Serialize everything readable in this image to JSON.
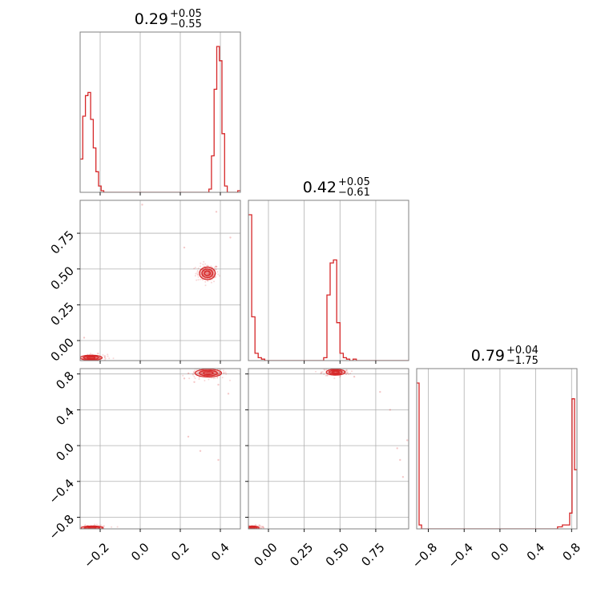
{
  "chart_data": {
    "type": "corner",
    "color": "#d62728",
    "grid": true,
    "parameters": [
      "p0",
      "p1",
      "p2"
    ],
    "titles": [
      {
        "median": "0.29",
        "plus": "+0.05",
        "minus": "−0.55"
      },
      {
        "median": "0.42",
        "plus": "+0.05",
        "minus": "−0.61"
      },
      {
        "median": "0.79",
        "plus": "+0.04",
        "minus": "−1.75"
      }
    ],
    "ranges": [
      [
        -0.3,
        0.5
      ],
      [
        -0.14,
        0.98
      ],
      [
        -0.93,
        0.86
      ]
    ],
    "ticks": [
      {
        "values": [
          -0.2,
          0.0,
          0.2,
          0.4
        ],
        "labels": [
          "−0.2",
          "0.0",
          "0.2",
          "0.4"
        ]
      },
      {
        "values": [
          0.0,
          0.25,
          0.5,
          0.75
        ],
        "labels": [
          "0.00",
          "0.25",
          "0.50",
          "0.75"
        ]
      },
      {
        "values": [
          -0.8,
          -0.4,
          0.0,
          0.4,
          0.8
        ],
        "labels": [
          "−0.8",
          "−0.4",
          "0.0",
          "0.4",
          "0.8"
        ]
      }
    ],
    "histograms": [
      {
        "param": 0,
        "bins": [
          -0.3,
          0.5
        ],
        "counts": [
          0.21,
          0.48,
          0.61,
          0.63,
          0.46,
          0.28,
          0.13,
          0.04,
          0.01,
          0,
          0,
          0,
          0,
          0,
          0,
          0,
          0,
          0,
          0,
          0,
          0,
          0,
          0,
          0,
          0,
          0,
          0,
          0,
          0,
          0,
          0,
          0,
          0,
          0,
          0,
          0,
          0,
          0,
          0,
          0,
          0,
          0,
          0,
          0,
          0,
          0,
          0,
          0,
          0,
          0.02,
          0.23,
          0.65,
          0.92,
          0.83,
          0.37,
          0.04,
          0,
          0,
          0,
          0,
          0.01
        ]
      },
      {
        "param": 1,
        "bins": [
          -0.14,
          0.98
        ],
        "counts": [
          1.0,
          0.3,
          0.05,
          0.02,
          0.01,
          0,
          0,
          0,
          0,
          0,
          0,
          0,
          0,
          0,
          0,
          0,
          0,
          0,
          0,
          0,
          0,
          0,
          0,
          0.02,
          0.45,
          0.67,
          0.69,
          0.26,
          0.05,
          0.02,
          0.01,
          0,
          0.01,
          0,
          0,
          0,
          0,
          0,
          0,
          0,
          0,
          0,
          0,
          0,
          0,
          0,
          0,
          0,
          0
        ]
      },
      {
        "param": 2,
        "bins": [
          -0.93,
          0.86
        ],
        "counts": [
          0.74,
          0.02,
          0,
          0,
          0,
          0,
          0,
          0,
          0,
          0,
          0,
          0,
          0,
          0,
          0,
          0,
          0,
          0,
          0,
          0,
          0,
          0,
          0,
          0,
          0,
          0,
          0,
          0,
          0,
          0,
          0,
          0,
          0,
          0,
          0,
          0,
          0,
          0,
          0,
          0,
          0,
          0,
          0,
          0,
          0,
          0,
          0,
          0,
          0,
          0,
          0,
          0,
          0,
          0,
          0,
          0,
          0,
          0,
          0.01,
          0.01,
          0.02,
          0.02,
          0.02,
          0.08,
          0.66,
          0.3
        ]
      }
    ],
    "scatter_clusters": [
      {
        "xparam": 0,
        "yparam": 1,
        "clusters": [
          {
            "cx": 0.335,
            "cy": 0.47,
            "sx": 0.018,
            "sy": 0.02,
            "weight": 1.0
          },
          {
            "cx": -0.245,
            "cy": -0.12,
            "sx": 0.025,
            "sy": 0.008,
            "weight": 1.0
          }
        ],
        "outliers": [
          [
            0.38,
            0.9
          ],
          [
            -0.28,
            0.02
          ],
          [
            0.22,
            0.65
          ],
          [
            0.01,
            0.95
          ],
          [
            0.45,
            0.72
          ]
        ]
      },
      {
        "xparam": 0,
        "yparam": 2,
        "clusters": [
          {
            "cx": 0.34,
            "cy": 0.81,
            "sx": 0.03,
            "sy": 0.02,
            "weight": 1.0
          },
          {
            "cx": -0.24,
            "cy": -0.92,
            "sx": 0.025,
            "sy": 0.01,
            "weight": 1.0
          }
        ],
        "outliers": [
          [
            0.22,
            0.75
          ],
          [
            0.3,
            -0.06
          ],
          [
            0.24,
            0.1
          ],
          [
            0.44,
            0.58
          ],
          [
            0.39,
            -0.16
          ],
          [
            0.39,
            0.68
          ],
          [
            0.27,
            0.71
          ]
        ]
      },
      {
        "xparam": 1,
        "yparam": 2,
        "clusters": [
          {
            "cx": 0.47,
            "cy": 0.82,
            "sx": 0.03,
            "sy": 0.015,
            "weight": 1.0
          },
          {
            "cx": -0.11,
            "cy": -0.92,
            "sx": 0.02,
            "sy": 0.01,
            "weight": 1.0
          }
        ],
        "outliers": [
          [
            0.6,
            0.77
          ],
          [
            0.78,
            0.6
          ],
          [
            0.9,
            -0.03
          ],
          [
            0.97,
            0.06
          ],
          [
            0.94,
            -0.35
          ],
          [
            0.85,
            0.4
          ],
          [
            0.92,
            -0.16
          ]
        ]
      }
    ]
  }
}
